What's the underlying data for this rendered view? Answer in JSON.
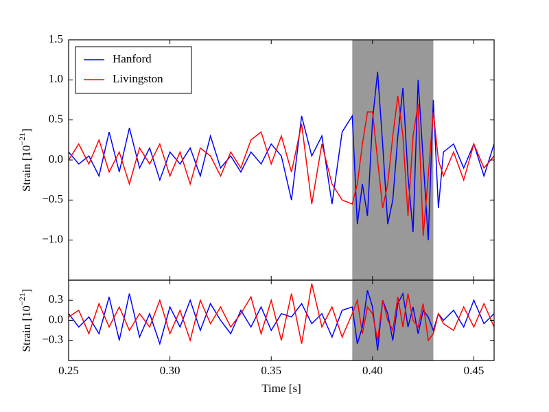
{
  "chart_data": [
    {
      "type": "line",
      "ylabel": [
        "Strain [10",
        "−21",
        "]"
      ],
      "x": [
        0.25,
        0.255,
        0.26,
        0.265,
        0.27,
        0.275,
        0.28,
        0.285,
        0.29,
        0.295,
        0.3,
        0.305,
        0.31,
        0.315,
        0.32,
        0.325,
        0.33,
        0.335,
        0.34,
        0.345,
        0.35,
        0.355,
        0.36,
        0.365,
        0.37,
        0.375,
        0.38,
        0.385,
        0.39,
        0.3925,
        0.395,
        0.3975,
        0.4,
        0.4025,
        0.405,
        0.4075,
        0.41,
        0.4125,
        0.415,
        0.4175,
        0.42,
        0.4225,
        0.425,
        0.4275,
        0.43,
        0.4325,
        0.435,
        0.44,
        0.445,
        0.45,
        0.455,
        0.46
      ],
      "series": [
        {
          "name": "Hanford",
          "color": "#0000ff",
          "values": [
            0.1,
            -0.05,
            0.05,
            -0.2,
            0.35,
            -0.15,
            0.4,
            -0.1,
            0.15,
            -0.25,
            0.1,
            -0.05,
            0.15,
            -0.2,
            0.3,
            -0.1,
            0.05,
            -0.15,
            0.1,
            -0.05,
            0.2,
            0.05,
            -0.5,
            0.55,
            0.05,
            0.3,
            -0.55,
            0.35,
            0.55,
            -0.8,
            -0.3,
            -0.7,
            0.5,
            1.1,
            0.2,
            -0.8,
            -0.5,
            0.3,
            0.9,
            -0.2,
            -0.9,
            1.0,
            0.0,
            -1.0,
            0.75,
            -0.6,
            0.1,
            0.2,
            -0.1,
            0.2,
            -0.2,
            0.2
          ]
        },
        {
          "name": "Livingston",
          "color": "#ff0000",
          "values": [
            0.0,
            0.2,
            -0.05,
            0.25,
            -0.15,
            0.1,
            -0.3,
            0.15,
            -0.05,
            0.2,
            -0.2,
            0.1,
            -0.3,
            0.15,
            0.05,
            -0.2,
            0.1,
            -0.1,
            0.25,
            0.35,
            -0.05,
            0.3,
            -0.15,
            0.45,
            -0.55,
            0.2,
            -0.3,
            -0.5,
            -0.55,
            -0.3,
            0.2,
            0.6,
            0.6,
            0.0,
            -0.6,
            -0.3,
            0.3,
            0.8,
            0.3,
            -0.7,
            0.3,
            0.7,
            -0.95,
            -0.2,
            0.6,
            0.0,
            -0.2,
            0.1,
            -0.25,
            0.2,
            -0.1,
            0.05
          ]
        }
      ],
      "xlim": [
        0.25,
        0.46
      ],
      "ylim": [
        -1.5,
        1.5
      ],
      "yticks": [
        1.5,
        {
          "value": 1.0,
          "label": "1.0"
        },
        0.5,
        {
          "value": 0.0,
          "label": "0.0"
        },
        {
          "value": -0.5,
          "label": "−0.5"
        },
        {
          "value": -1.0,
          "label": "−1.0"
        }
      ],
      "span": [
        0.39,
        0.43
      ],
      "span_color": "#999999",
      "legend": "upper left"
    },
    {
      "type": "line",
      "ylabel": [
        "Strain [10",
        "−21",
        "]"
      ],
      "xlabel": "Time [s]",
      "x": [
        0.25,
        0.255,
        0.26,
        0.265,
        0.27,
        0.275,
        0.28,
        0.285,
        0.29,
        0.295,
        0.3,
        0.305,
        0.31,
        0.315,
        0.32,
        0.325,
        0.33,
        0.335,
        0.34,
        0.345,
        0.35,
        0.355,
        0.36,
        0.365,
        0.37,
        0.375,
        0.38,
        0.385,
        0.39,
        0.3925,
        0.395,
        0.3975,
        0.4,
        0.4025,
        0.405,
        0.4075,
        0.41,
        0.4125,
        0.415,
        0.4175,
        0.42,
        0.4225,
        0.425,
        0.4275,
        0.43,
        0.4325,
        0.435,
        0.44,
        0.445,
        0.45,
        0.455,
        0.46
      ],
      "series": [
        {
          "color": "#0000ff",
          "values": [
            0.1,
            -0.1,
            0.05,
            -0.2,
            0.35,
            -0.3,
            0.4,
            -0.25,
            0.1,
            -0.35,
            0.2,
            -0.1,
            0.3,
            -0.15,
            0.25,
            0.0,
            -0.2,
            0.15,
            -0.1,
            0.2,
            -0.15,
            0.1,
            0.05,
            0.25,
            -0.05,
            0.1,
            -0.25,
            0.15,
            0.2,
            -0.35,
            -0.1,
            0.45,
            0.2,
            -0.45,
            0.3,
            0.1,
            -0.3,
            0.25,
            0.4,
            -0.1,
            0.2,
            -0.2,
            0.15,
            0.05,
            -0.15,
            0.1,
            0.0,
            0.15,
            -0.1,
            0.3,
            -0.05,
            0.1
          ]
        },
        {
          "color": "#ff0000",
          "values": [
            0.05,
            0.15,
            -0.2,
            0.25,
            -0.1,
            0.2,
            -0.15,
            0.1,
            -0.1,
            0.3,
            -0.2,
            0.15,
            -0.3,
            0.3,
            -0.05,
            0.2,
            -0.1,
            0.1,
            0.35,
            -0.2,
            0.3,
            -0.3,
            0.4,
            -0.35,
            0.55,
            -0.1,
            0.2,
            -0.25,
            0.1,
            0.3,
            -0.2,
            0.2,
            0.1,
            -0.3,
            0.3,
            0.0,
            -0.15,
            0.35,
            -0.1,
            0.4,
            0.0,
            -0.1,
            0.25,
            -0.3,
            -0.2,
            0.1,
            -0.05,
            -0.15,
            0.2,
            -0.1,
            0.25,
            -0.1
          ]
        }
      ],
      "xlim": [
        0.25,
        0.46
      ],
      "xticks": [
        0.25,
        {
          "value": 0.3,
          "label": "0.30"
        },
        0.35,
        {
          "value": 0.4,
          "label": "0.40"
        },
        0.45
      ],
      "ylim": [
        -0.6,
        0.6
      ],
      "yticks": [
        0.3,
        {
          "value": 0.0,
          "label": "0.0"
        },
        {
          "value": -0.3,
          "label": "−0.3"
        }
      ],
      "span": [
        0.39,
        0.43
      ],
      "span_color": "#999999"
    }
  ]
}
